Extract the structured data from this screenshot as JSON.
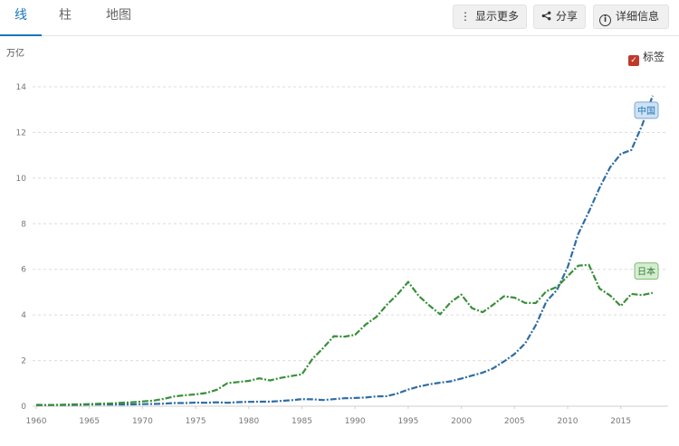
{
  "tabs": [
    {
      "label": "线",
      "active": true
    },
    {
      "label": "柱",
      "active": false
    },
    {
      "label": "地图",
      "active": false
    }
  ],
  "toolbar": {
    "more_label": "显示更多",
    "share_label": "分享",
    "details_label": "详细信息",
    "more_icon": "vertical-dots-icon",
    "share_icon": "share-icon",
    "details_icon": "info-icon"
  },
  "legend": {
    "label": "标签",
    "checked": true,
    "check_color": "#c0392b"
  },
  "chart_data": {
    "type": "line",
    "unit": "万亿",
    "x": [
      1960,
      1961,
      1962,
      1963,
      1964,
      1965,
      1966,
      1967,
      1968,
      1969,
      1970,
      1971,
      1972,
      1973,
      1974,
      1975,
      1976,
      1977,
      1978,
      1979,
      1980,
      1981,
      1982,
      1983,
      1984,
      1985,
      1986,
      1987,
      1988,
      1989,
      1990,
      1991,
      1992,
      1993,
      1994,
      1995,
      1996,
      1997,
      1998,
      1999,
      2000,
      2001,
      2002,
      2003,
      2004,
      2005,
      2006,
      2007,
      2008,
      2009,
      2010,
      2011,
      2012,
      2013,
      2014,
      2015,
      2016,
      2017,
      2018
    ],
    "xticks": [
      1960,
      1965,
      1970,
      1975,
      1980,
      1985,
      1990,
      1995,
      2000,
      2005,
      2010,
      2015
    ],
    "yticks": [
      0,
      2,
      4,
      6,
      8,
      10,
      12,
      14
    ],
    "ylim": [
      0,
      14.5
    ],
    "xlim": [
      1960,
      2018.5
    ],
    "grid": true,
    "series": [
      {
        "name": "中国",
        "color": "#2e6da4",
        "values": [
          0.06,
          0.05,
          0.05,
          0.05,
          0.06,
          0.07,
          0.08,
          0.07,
          0.07,
          0.08,
          0.09,
          0.1,
          0.11,
          0.14,
          0.14,
          0.16,
          0.15,
          0.17,
          0.15,
          0.18,
          0.19,
          0.2,
          0.2,
          0.23,
          0.26,
          0.31,
          0.3,
          0.27,
          0.31,
          0.35,
          0.36,
          0.38,
          0.43,
          0.44,
          0.56,
          0.73,
          0.86,
          0.96,
          1.03,
          1.09,
          1.21,
          1.34,
          1.47,
          1.66,
          1.96,
          2.29,
          2.75,
          3.55,
          4.59,
          5.1,
          6.09,
          7.55,
          8.53,
          9.57,
          10.48,
          11.06,
          11.23,
          12.31,
          13.61
        ]
      },
      {
        "name": "日本",
        "color": "#3a8f3a",
        "values": [
          0.04,
          0.05,
          0.06,
          0.07,
          0.08,
          0.09,
          0.11,
          0.12,
          0.15,
          0.17,
          0.21,
          0.24,
          0.32,
          0.43,
          0.48,
          0.52,
          0.58,
          0.72,
          1.01,
          1.06,
          1.11,
          1.22,
          1.13,
          1.24,
          1.32,
          1.4,
          2.08,
          2.55,
          3.07,
          3.05,
          3.13,
          3.58,
          3.91,
          4.45,
          4.91,
          5.45,
          4.83,
          4.41,
          4.03,
          4.56,
          4.89,
          4.3,
          4.12,
          4.45,
          4.82,
          4.76,
          4.53,
          4.52,
          5.04,
          5.23,
          5.7,
          6.16,
          6.2,
          5.16,
          4.85,
          4.39,
          4.92,
          4.87,
          4.97
        ]
      }
    ],
    "series_tags": [
      {
        "label": "中国",
        "bg": "#cfe2f3",
        "border": "#7aa7d3",
        "text": "#1a75b8"
      },
      {
        "label": "日本",
        "bg": "#d6ecd2",
        "border": "#7dbb72",
        "text": "#2e7d32"
      }
    ]
  }
}
